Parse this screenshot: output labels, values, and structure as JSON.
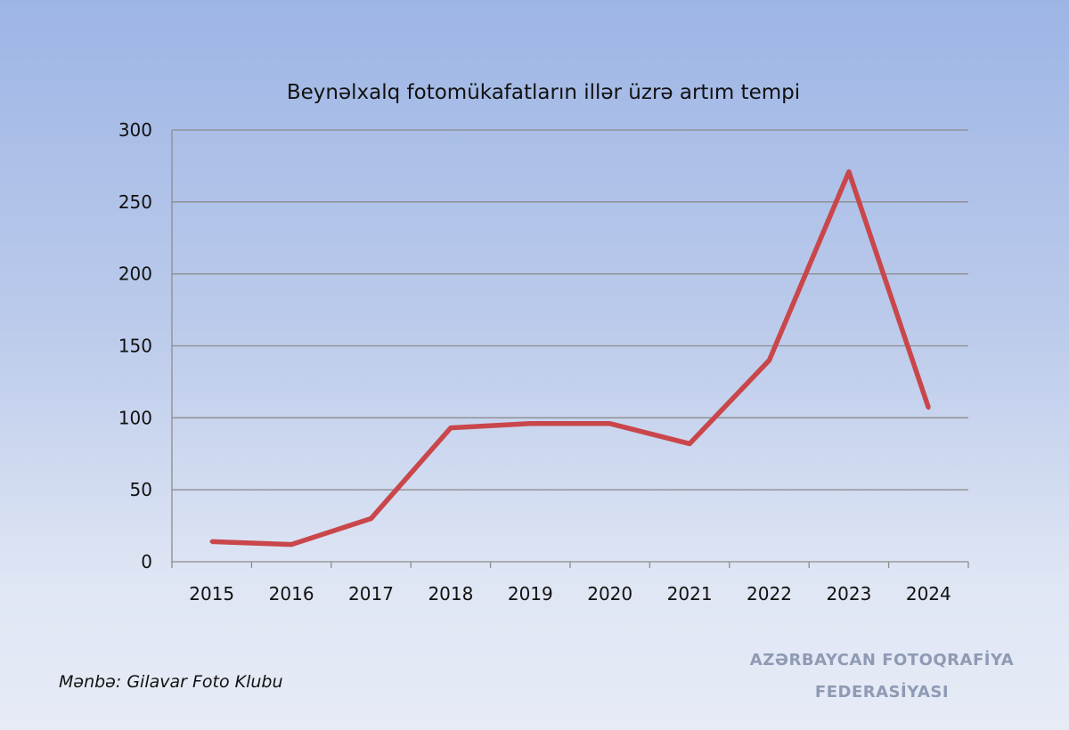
{
  "chart_data": {
    "type": "line",
    "title": "Beynəlxalq fotomükafatların illər üzrə artım tempi",
    "categories": [
      "2015",
      "2016",
      "2017",
      "2018",
      "2019",
      "2020",
      "2021",
      "2022",
      "2023",
      "2024"
    ],
    "series": [
      {
        "values": [
          14,
          12,
          30,
          93,
          96,
          96,
          82,
          140,
          271,
          107
        ],
        "color": "#c9474b"
      }
    ],
    "yticks": [
      "0",
      "50",
      "100",
      "150",
      "200",
      "250",
      "300"
    ],
    "ylim": [
      0,
      300
    ],
    "grid": true,
    "legend": "none"
  },
  "source": "Mənbə: Gilavar Foto Klubu",
  "watermark": [
    "AZƏRBAYCAN FOTOQRAFİYA",
    "FEDERASİYASI"
  ]
}
